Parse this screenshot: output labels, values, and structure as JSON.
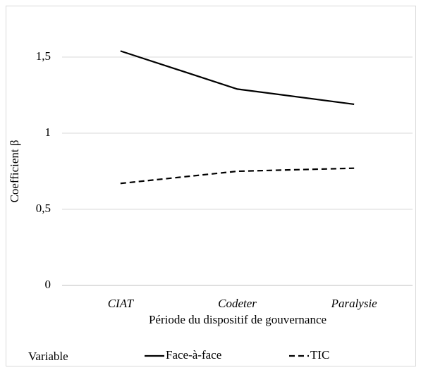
{
  "chart_data": {
    "type": "line",
    "x_label": "Période du dispositif de gouvernance",
    "y_label": "Coefficient β",
    "categories": [
      "CIAT",
      "Codeter",
      "Paralysie"
    ],
    "series": [
      {
        "name": "Face-à-face",
        "color": "#000000",
        "style": "solid",
        "values": [
          1.54,
          1.29,
          1.19
        ]
      },
      {
        "name": "TIC",
        "color": "#000000",
        "style": "dashed",
        "values": [
          0.67,
          0.75,
          0.77
        ]
      }
    ],
    "ylim": [
      0,
      1.75
    ],
    "yticks": [
      0,
      {
        "value": 0.5,
        "label": "0,5"
      },
      1,
      {
        "value": 1.5,
        "label": "1,5"
      }
    ],
    "grid": true,
    "legend_title": "Variable",
    "legend": "bottom"
  }
}
